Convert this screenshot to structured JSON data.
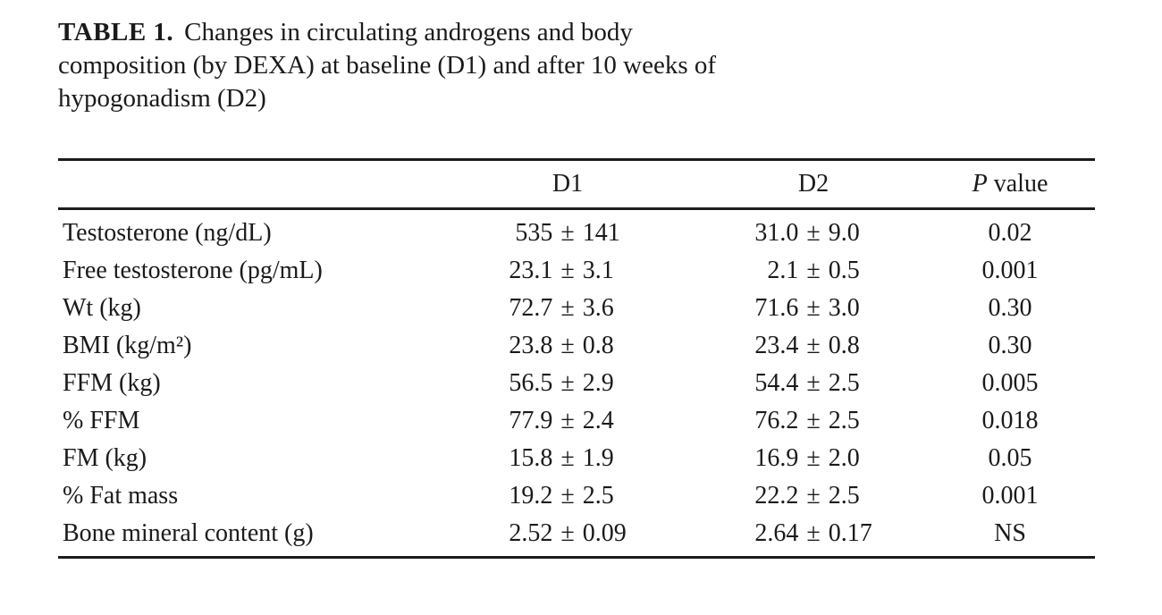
{
  "caption": {
    "label": "TABLE 1.",
    "lines": [
      "Changes in circulating androgens and body",
      "composition (by DEXA) at baseline (D1) and after 10 weeks of",
      "hypogonadism (D2)"
    ]
  },
  "table": {
    "headers": {
      "parameter": "",
      "d1": "D1",
      "d2": "D2",
      "p_prefix": "P",
      "p_rest": "value"
    },
    "rows": [
      {
        "parameter": "Testosterone (ng/dL)",
        "d1": "535 ± 141",
        "d2": "31.0 ± 9.0",
        "p": "0.02"
      },
      {
        "parameter": "Free testosterone (pg/mL)",
        "d1": "23.1 ± 3.1",
        "d2": "2.1 ± 0.5",
        "p": "0.001"
      },
      {
        "parameter": "Wt (kg)",
        "d1": "72.7 ± 3.6",
        "d2": "71.6 ± 3.0",
        "p": "0.30"
      },
      {
        "parameter": "BMI (kg/m²)",
        "d1": "23.8 ± 0.8",
        "d2": "23.4 ± 0.8",
        "p": "0.30"
      },
      {
        "parameter": "FFM (kg)",
        "d1": "56.5 ± 2.9",
        "d2": "54.4 ± 2.5",
        "p": "0.005"
      },
      {
        "parameter": "% FFM",
        "d1": "77.9 ± 2.4",
        "d2": "76.2 ± 2.5",
        "p": "0.018"
      },
      {
        "parameter": "FM (kg)",
        "d1": "15.8 ± 1.9",
        "d2": "16.9 ± 2.0",
        "p": "0.05"
      },
      {
        "parameter": "% Fat mass",
        "d1": "19.2 ± 2.5",
        "d2": "22.2 ± 2.5",
        "p": "0.001"
      },
      {
        "parameter": "Bone mineral content (g)",
        "d1": "2.52 ± 0.09",
        "d2": "2.64 ± 0.17",
        "p": "NS"
      }
    ]
  },
  "colors": {
    "background": "#ffffff",
    "text": "#1a1a1a",
    "rule": "#1c1c1c"
  }
}
